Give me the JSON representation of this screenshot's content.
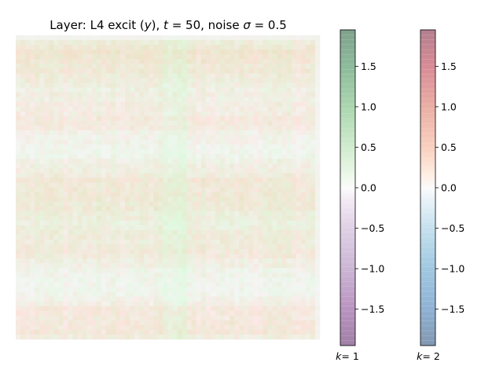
{
  "chart_data": {
    "type": "heatmap",
    "title": "Layer: L4 excit (y), t = 50, noise σ = 0.5",
    "title_parts": {
      "prefix": "Layer: L4 excit (",
      "y": "y",
      "mid1": "), ",
      "t": "t",
      "mid2": " = 50, noise ",
      "sigma": "σ",
      "suffix": " = 0.5"
    },
    "grid": {
      "rows": 64,
      "cols": 64
    },
    "heatmap_description": "Two overlaid channels (k=1 green, k=2 red), values near zero (about -0.2 to 0.3), showing faint horizontal banding and a lighter vertical stripe near the center.",
    "value_range": [
      -1.95,
      1.95
    ],
    "colorbars": [
      {
        "name": "k=1",
        "label_k": "k",
        "label_value": "= 1",
        "colormap": "PRGn",
        "top_color": "#1b7837",
        "mid_color": "#f7f7f7",
        "bottom_color": "#762a83",
        "ticks": [
          "1.5",
          "1.0",
          "0.5",
          "0.0",
          "−0.5",
          "−1.0",
          "−1.5"
        ],
        "tick_values": [
          1.5,
          1.0,
          0.5,
          0.0,
          -0.5,
          -1.0,
          -1.5
        ]
      },
      {
        "name": "k=2",
        "label_k": "k",
        "label_value": "= 2",
        "colormap": "RdBu_r",
        "top_color": "#b2182b",
        "mid_color": "#f7f7f7",
        "bottom_color": "#2166ac",
        "ticks": [
          "1.5",
          "1.0",
          "0.5",
          "0.0",
          "−0.5",
          "−1.0",
          "−1.5"
        ],
        "tick_values": [
          1.5,
          1.0,
          0.5,
          0.0,
          -0.5,
          -1.0,
          -1.5
        ]
      }
    ],
    "alpha": 0.5
  }
}
